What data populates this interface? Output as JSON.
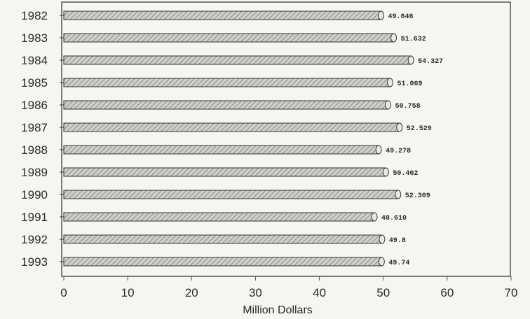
{
  "chart_data": {
    "type": "bar",
    "orientation": "horizontal",
    "categories": [
      "1982",
      "1983",
      "1984",
      "1985",
      "1986",
      "1987",
      "1988",
      "1989",
      "1990",
      "1991",
      "1992",
      "1993"
    ],
    "values": [
      49.646,
      51.632,
      54.327,
      51.069,
      50.758,
      52.529,
      49.278,
      50.402,
      52.309,
      48.61,
      49.8,
      49.74
    ],
    "value_labels": [
      "49.646",
      "51.632",
      "54.327",
      "51.069",
      "50.758",
      "52.529",
      "49.278",
      "50.402",
      "52.309",
      "48.610",
      "49.8",
      "49.74"
    ],
    "x_ticks": [
      "0",
      "10",
      "20",
      "30",
      "40",
      "50",
      "60",
      "70"
    ],
    "xlim": [
      0,
      70
    ],
    "xlabel": "Million Dollars",
    "ylabel": "",
    "title": "",
    "grid": false,
    "bar_fill": "hatched gray, 3D cylinder style",
    "colors": {
      "bar_fill": "#c9c9c4",
      "hatch": "#6f6f6f",
      "outline": "#333333",
      "frame": "#555555",
      "background": "#f6f5f1"
    }
  }
}
